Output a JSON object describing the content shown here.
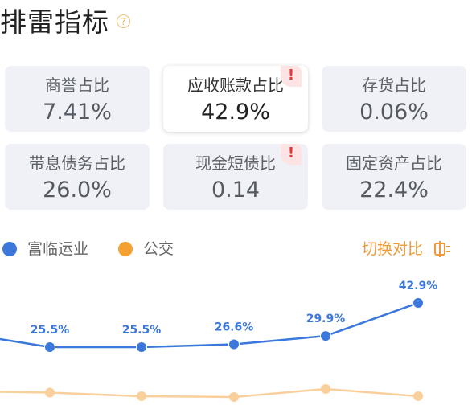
{
  "header": {
    "title": "排雷指标",
    "help_icon": "?"
  },
  "cards": [
    {
      "label": "商誉占比",
      "value": "7.41%",
      "warning": false
    },
    {
      "label": "应收账款占比",
      "value": "42.9%",
      "warning": true
    },
    {
      "label": "存货占比",
      "value": "0.06%",
      "warning": false
    },
    {
      "label": "带息债务占比",
      "value": "26.0%",
      "warning": false
    },
    {
      "label": "现金短债比",
      "value": "0.14",
      "warning": true
    },
    {
      "label": "固定资产占比",
      "value": "22.4%",
      "warning": false
    }
  ],
  "warning_glyph": "!",
  "legend": {
    "series_a": {
      "name": "富临运业",
      "color": "#3c78dc"
    },
    "series_b": {
      "name": "公交",
      "color": "#f5a033"
    }
  },
  "switch_label": "切换对比",
  "chart_data": {
    "type": "line",
    "x": [
      0,
      1,
      2,
      3,
      4
    ],
    "series": [
      {
        "name": "富临运业",
        "values": [
          25.5,
          25.5,
          26.6,
          29.9,
          42.9
        ],
        "labels": [
          "25.5%",
          "25.5%",
          "26.6%",
          "29.9%",
          "42.9%"
        ],
        "color": "#3c78dc"
      },
      {
        "name": "公交",
        "values": [
          10.2,
          8.8,
          8.5,
          11.6,
          8.8
        ],
        "color": "#f9cf9b"
      }
    ]
  }
}
